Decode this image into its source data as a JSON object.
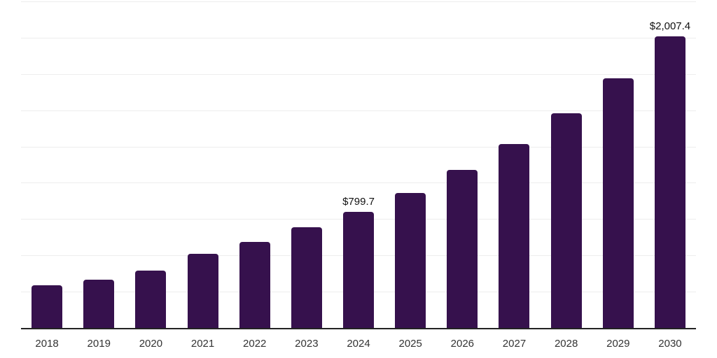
{
  "chart_data": {
    "type": "bar",
    "title": "",
    "xlabel": "",
    "ylabel": "",
    "categories": [
      "2018",
      "2019",
      "2020",
      "2021",
      "2022",
      "2023",
      "2024",
      "2025",
      "2026",
      "2027",
      "2028",
      "2029",
      "2030"
    ],
    "values": [
      292.0,
      331.0,
      394.0,
      513.0,
      594.0,
      696.0,
      799.7,
      932.3,
      1086.9,
      1267.2,
      1477.4,
      1722.4,
      2007.4
    ],
    "point_labels": [
      "",
      "",
      "",
      "",
      "",
      "",
      "$799.7",
      "",
      "",
      "",
      "",
      "",
      "$2,007.4"
    ],
    "value_prefix": "$",
    "ylim": [
      0,
      2250
    ],
    "gridline_step": 250,
    "grid": "horizontal",
    "y_axis_labels_visible": false,
    "legend": "none",
    "colors": {
      "bar": "#36114D",
      "axis": "#232323",
      "gridline": "#EDEDED",
      "tick_label": "#333333",
      "value_label": "#111111",
      "background": "#FFFFFF"
    }
  }
}
